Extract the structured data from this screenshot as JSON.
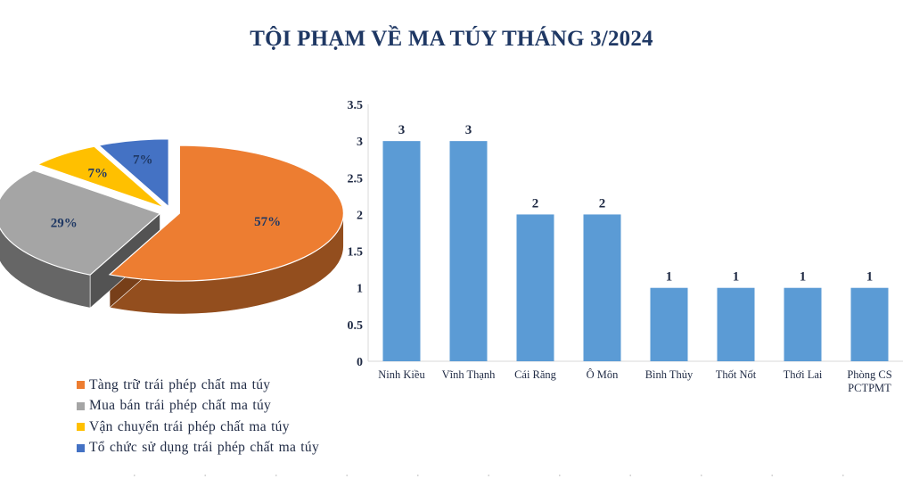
{
  "title": "TỘI PHẠM VỀ MA TÚY THÁNG 3/2024",
  "chart_data": [
    {
      "type": "pie",
      "title": "",
      "series": [
        {
          "name": "Tàng trữ trái phép chất ma túy",
          "value": 57,
          "label": "57%",
          "color": "#ed7d31"
        },
        {
          "name": "Mua bán trái phép chất ma túy",
          "value": 29,
          "label": "29%",
          "color": "#a5a5a5"
        },
        {
          "name": "Vận chuyển trái phép chất ma túy",
          "value": 7,
          "label": "7%",
          "color": "#ffc000"
        },
        {
          "name": "Tổ chức sử dụng trái phép chất ma túy",
          "value": 7,
          "label": "7%",
          "color": "#4472c4"
        }
      ],
      "legend_position": "bottom-left",
      "style": "3d exploded pie"
    },
    {
      "type": "bar",
      "title": "",
      "categories": [
        "Ninh Kiều",
        "Vĩnh Thạnh",
        "Cái Răng",
        "Ô Môn",
        "Bình Thủy",
        "Thốt Nốt",
        "Thới Lai",
        "Phòng CS PCTPMT"
      ],
      "category_lines": [
        [
          "Ninh Kiều"
        ],
        [
          "Vĩnh Thạnh"
        ],
        [
          "Cái Răng"
        ],
        [
          "Ô Môn"
        ],
        [
          "Bình Thủy"
        ],
        [
          "Thốt Nốt"
        ],
        [
          "Thới Lai"
        ],
        [
          "Phòng CS",
          "PCTPMT"
        ]
      ],
      "values": [
        3,
        3,
        2,
        2,
        1,
        1,
        1,
        1
      ],
      "data_labels": [
        "3",
        "3",
        "2",
        "2",
        "1",
        "1",
        "1",
        "1"
      ],
      "ylim": [
        0,
        3.5
      ],
      "yticks": [
        "0",
        "0.5",
        "1",
        "1.5",
        "2",
        "2.5",
        "3",
        "3.5"
      ],
      "xlabel": "",
      "ylabel": "",
      "grid": false,
      "color": "#5b9bd5"
    }
  ]
}
